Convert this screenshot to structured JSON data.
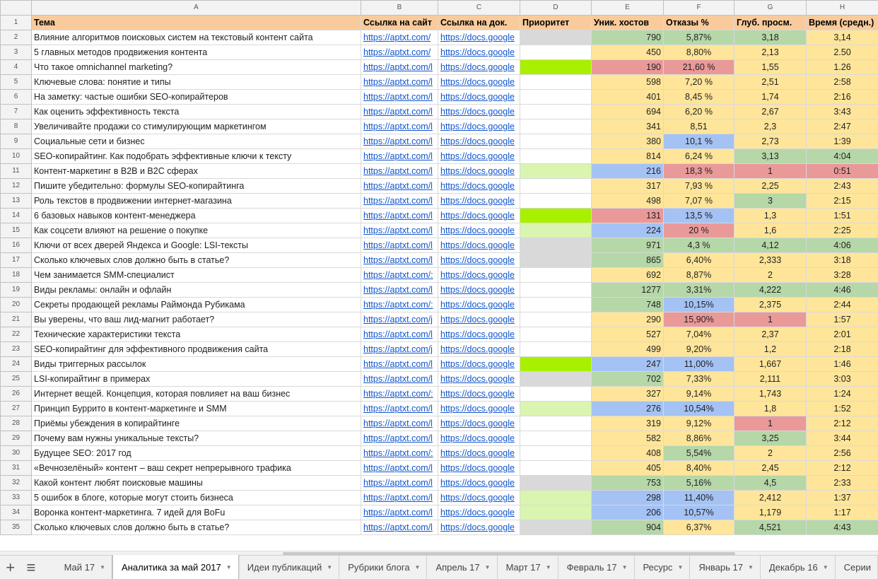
{
  "colors": {
    "header_bg": "#f9cb9c",
    "green": "#b6d7a8",
    "yellow": "#ffe599",
    "red": "#ea9999",
    "blue": "#a4c2f4",
    "grey": "#d9d9d9",
    "lime": "#a8f000",
    "lightgreen": "#d9f5b0",
    "white": "#ffffff"
  },
  "columns": [
    "A",
    "B",
    "C",
    "D",
    "E",
    "F",
    "G",
    "H"
  ],
  "headers": [
    "Тема",
    "Ссылка на сайт",
    "Ссылка на док.",
    "Приоритет",
    "Уник. хостов",
    "Отказы %",
    "Глуб. просм.",
    "Время (средн.)"
  ],
  "rows": [
    {
      "n": "2",
      "title": "Влияние алгоритмов поисковых систем на текстовый контент сайта",
      "site": "https://aptxt.com/",
      "doc": "https://docs.google",
      "pri": "grey",
      "hosts": "790",
      "hc": "green",
      "bounce": "5,87%",
      "bc": "green",
      "depth": "3,18",
      "dc": "green",
      "time": "3,14",
      "tc": "yellow"
    },
    {
      "n": "3",
      "title": "5 главных методов продвижения контента",
      "site": "https://aptxt.com/",
      "doc": "https://docs.google",
      "pri": "white",
      "hosts": "450",
      "hc": "yellow",
      "bounce": "8,80%",
      "bc": "yellow",
      "depth": "2,13",
      "dc": "yellow",
      "time": "2.50",
      "tc": "yellow"
    },
    {
      "n": "4",
      "title": "Что такое omnichannel marketing?",
      "site": "https://aptxt.com/l",
      "doc": "https://docs.google",
      "pri": "lime",
      "hosts": "190",
      "hc": "red",
      "bounce": "21,60 %",
      "bc": "red",
      "depth": "1,55",
      "dc": "yellow",
      "time": "1.26",
      "tc": "yellow"
    },
    {
      "n": "5",
      "title": "Ключевые слова: понятие и типы",
      "site": "https://aptxt.com/l",
      "doc": "https://docs.google",
      "pri": "white",
      "hosts": "598",
      "hc": "yellow",
      "bounce": "7,20 %",
      "bc": "yellow",
      "depth": "2,51",
      "dc": "yellow",
      "time": "2:58",
      "tc": "yellow"
    },
    {
      "n": "6",
      "title": "На заметку: частые ошибки SEO-копирайтеров",
      "site": "https://aptxt.com/l",
      "doc": "https://docs.google",
      "pri": "white",
      "hosts": "401",
      "hc": "yellow",
      "bounce": "8,45 %",
      "bc": "yellow",
      "depth": "1,74",
      "dc": "yellow",
      "time": "2:16",
      "tc": "yellow"
    },
    {
      "n": "7",
      "title": "Как оценить эффективность текста",
      "site": "https://aptxt.com/l",
      "doc": "https://docs.google",
      "pri": "white",
      "hosts": "694",
      "hc": "yellow",
      "bounce": "6,20 %",
      "bc": "yellow",
      "depth": "2,67",
      "dc": "yellow",
      "time": "3:43",
      "tc": "yellow"
    },
    {
      "n": "8",
      "title": "Увеличивайте продажи со стимулирующим маркетингом",
      "site": "https://aptxt.com/l",
      "doc": "https://docs.google",
      "pri": "white",
      "hosts": "341",
      "hc": "yellow",
      "bounce": "8,51",
      "bc": "yellow",
      "depth": "2,3",
      "dc": "yellow",
      "time": "2:47",
      "tc": "yellow"
    },
    {
      "n": "9",
      "title": "Социальные сети и бизнес",
      "site": "https://aptxt.com/l",
      "doc": "https://docs.google",
      "pri": "white",
      "hosts": "380",
      "hc": "yellow",
      "bounce": "10,1 %",
      "bc": "blue",
      "depth": "2,73",
      "dc": "yellow",
      "time": "1:39",
      "tc": "yellow"
    },
    {
      "n": "10",
      "title": "SEO-копирайтинг. Как подобрать эффективные ключи к тексту",
      "site": "https://aptxt.com/l",
      "doc": "https://docs.google",
      "pri": "white",
      "hosts": "814",
      "hc": "yellow",
      "bounce": "6,24 %",
      "bc": "yellow",
      "depth": "3,13",
      "dc": "green",
      "time": "4:04",
      "tc": "green"
    },
    {
      "n": "11",
      "title": "Контент-маркетинг в B2B и B2C сферах",
      "site": "https://aptxt.com/l",
      "doc": "https://docs.google",
      "pri": "lightgreen",
      "hosts": "216",
      "hc": "blue",
      "bounce": "18,3 %",
      "bc": "red",
      "depth": "1",
      "dc": "red",
      "time": "0:51",
      "tc": "red"
    },
    {
      "n": "12",
      "title": "Пишите убедительно: формулы SEO-копирайтинга",
      "site": "https://aptxt.com/l",
      "doc": "https://docs.google",
      "pri": "white",
      "hosts": "317",
      "hc": "yellow",
      "bounce": "7,93 %",
      "bc": "yellow",
      "depth": "2,25",
      "dc": "yellow",
      "time": "2:43",
      "tc": "yellow"
    },
    {
      "n": "13",
      "title": "Роль текстов в продвижении интернет-магазина",
      "site": "https://aptxt.com/l",
      "doc": "https://docs.google",
      "pri": "white",
      "hosts": "498",
      "hc": "yellow",
      "bounce": "7,07 %",
      "bc": "yellow",
      "depth": "3",
      "dc": "green",
      "time": "2:15",
      "tc": "yellow"
    },
    {
      "n": "14",
      "title": "6 базовых навыков контент-менеджера",
      "site": "https://aptxt.com/l",
      "doc": "https://docs.google",
      "pri": "lime",
      "hosts": "131",
      "hc": "red",
      "bounce": "13,5 %",
      "bc": "blue",
      "depth": "1,3",
      "dc": "yellow",
      "time": "1:51",
      "tc": "yellow"
    },
    {
      "n": "15",
      "title": "Как соцсети влияют на решение о покупке",
      "site": "https://aptxt.com/l",
      "doc": "https://docs.google",
      "pri": "lightgreen",
      "hosts": "224",
      "hc": "blue",
      "bounce": "20 %",
      "bc": "red",
      "depth": "1,6",
      "dc": "yellow",
      "time": "2:25",
      "tc": "yellow"
    },
    {
      "n": "16",
      "title": "Ключи от всех дверей Яндекса и Google: LSI-тексты",
      "site": "https://aptxt.com/l",
      "doc": "https://docs.google",
      "pri": "grey",
      "hosts": "971",
      "hc": "green",
      "bounce": "4,3 %",
      "bc": "green",
      "depth": "4,12",
      "dc": "green",
      "time": "4:06",
      "tc": "green"
    },
    {
      "n": "17",
      "title": "Сколько ключевых слов должно быть в статье?",
      "site": "https://aptxt.com/l",
      "doc": "https://docs.google",
      "pri": "grey",
      "hosts": "865",
      "hc": "green",
      "bounce": "6,40%",
      "bc": "yellow",
      "depth": "2,333",
      "dc": "yellow",
      "time": "3:18",
      "tc": "yellow"
    },
    {
      "n": "18",
      "title": "Чем занимается SMM-специалист",
      "site": "https://aptxt.com/:",
      "doc": "https://docs.google",
      "pri": "white",
      "hosts": "692",
      "hc": "yellow",
      "bounce": "8,87%",
      "bc": "yellow",
      "depth": "2",
      "dc": "yellow",
      "time": "3:28",
      "tc": "yellow"
    },
    {
      "n": "19",
      "title": "Виды рекламы: онлайн и офлайн",
      "site": "https://aptxt.com/l",
      "doc": "https://docs.google",
      "pri": "white",
      "hosts": "1277",
      "hc": "green",
      "bounce": "3,31%",
      "bc": "green",
      "depth": "4,222",
      "dc": "green",
      "time": "4:46",
      "tc": "green"
    },
    {
      "n": "20",
      "title": "Секреты продающей рекламы Раймонда Рубикама",
      "site": "https://aptxt.com/:",
      "doc": "https://docs.google",
      "pri": "white",
      "hosts": "748",
      "hc": "green",
      "bounce": "10,15%",
      "bc": "blue",
      "depth": "2,375",
      "dc": "yellow",
      "time": "2:44",
      "tc": "yellow"
    },
    {
      "n": "21",
      "title": "Вы уверены, что ваш лид-магнит работает?",
      "site": "https://aptxt.com/j",
      "doc": "https://docs.google",
      "pri": "white",
      "hosts": "290",
      "hc": "yellow",
      "bounce": "15,90%",
      "bc": "red",
      "depth": "1",
      "dc": "red",
      "time": "1:57",
      "tc": "yellow"
    },
    {
      "n": "22",
      "title": "Технические характеристики текста",
      "site": "https://aptxt.com/l",
      "doc": "https://docs.google",
      "pri": "white",
      "hosts": "527",
      "hc": "yellow",
      "bounce": "7,04%",
      "bc": "yellow",
      "depth": "2,37",
      "dc": "yellow",
      "time": "2:01",
      "tc": "yellow"
    },
    {
      "n": "23",
      "title": "SEO-копирайтинг для эффективного продвижения сайта",
      "site": "https://aptxt.com/j",
      "doc": "https://docs.google",
      "pri": "white",
      "hosts": "499",
      "hc": "yellow",
      "bounce": "9,20%",
      "bc": "yellow",
      "depth": "1,2",
      "dc": "yellow",
      "time": "2:18",
      "tc": "yellow"
    },
    {
      "n": "24",
      "title": "Виды триггерных рассылок",
      "site": "https://aptxt.com/l",
      "doc": "https://docs.google",
      "pri": "lime",
      "hosts": "247",
      "hc": "blue",
      "bounce": "11,00%",
      "bc": "blue",
      "depth": "1,667",
      "dc": "yellow",
      "time": "1:46",
      "tc": "yellow"
    },
    {
      "n": "25",
      "title": "LSI-копирайтинг в примерах",
      "site": "https://aptxt.com/l",
      "doc": "https://docs.google",
      "pri": "grey",
      "hosts": "702",
      "hc": "green",
      "bounce": "7,33%",
      "bc": "yellow",
      "depth": "2,111",
      "dc": "yellow",
      "time": "3:03",
      "tc": "yellow"
    },
    {
      "n": "26",
      "title": "Интернет вещей. Концепция, которая повлияет на ваш бизнес",
      "site": "https://aptxt.com/:",
      "doc": "https://docs.google",
      "pri": "white",
      "hosts": "327",
      "hc": "yellow",
      "bounce": "9,14%",
      "bc": "yellow",
      "depth": "1,743",
      "dc": "yellow",
      "time": "1:24",
      "tc": "yellow"
    },
    {
      "n": "27",
      "title": "Принцип Буррито в контент-маркетинге и SMM",
      "site": "https://aptxt.com/l",
      "doc": "https://docs.google",
      "pri": "lightgreen",
      "hosts": "276",
      "hc": "blue",
      "bounce": "10,54%",
      "bc": "blue",
      "depth": "1,8",
      "dc": "yellow",
      "time": "1:52",
      "tc": "yellow"
    },
    {
      "n": "28",
      "title": "Приёмы убеждения в копирайтинге",
      "site": "https://aptxt.com/l",
      "doc": "https://docs.google",
      "pri": "white",
      "hosts": "319",
      "hc": "yellow",
      "bounce": "9,12%",
      "bc": "yellow",
      "depth": "1",
      "dc": "red",
      "time": "2:12",
      "tc": "yellow"
    },
    {
      "n": "29",
      "title": "Почему вам нужны уникальные тексты?",
      "site": "https://aptxt.com/l",
      "doc": "https://docs.google",
      "pri": "white",
      "hosts": "582",
      "hc": "yellow",
      "bounce": "8,86%",
      "bc": "yellow",
      "depth": "3,25",
      "dc": "green",
      "time": "3:44",
      "tc": "yellow"
    },
    {
      "n": "30",
      "title": "Будущее SEO: 2017 год",
      "site": "https://aptxt.com/:",
      "doc": "https://docs.google",
      "pri": "white",
      "hosts": "408",
      "hc": "yellow",
      "bounce": "5,54%",
      "bc": "green",
      "depth": "2",
      "dc": "yellow",
      "time": "2:56",
      "tc": "yellow"
    },
    {
      "n": "31",
      "title": "«Вечнозелёный» контент – ваш секрет непрерывного трафика",
      "site": "https://aptxt.com/l",
      "doc": "https://docs.google",
      "pri": "white",
      "hosts": "405",
      "hc": "yellow",
      "bounce": "8,40%",
      "bc": "yellow",
      "depth": "2,45",
      "dc": "yellow",
      "time": "2:12",
      "tc": "yellow"
    },
    {
      "n": "32",
      "title": "Какой контент любят поисковые машины",
      "site": "https://aptxt.com/l",
      "doc": "https://docs.google",
      "pri": "grey",
      "hosts": "753",
      "hc": "green",
      "bounce": "5,16%",
      "bc": "green",
      "depth": "4,5",
      "dc": "green",
      "time": "2:33",
      "tc": "yellow"
    },
    {
      "n": "33",
      "title": "5 ошибок в блоге, которые могут стоить бизнеса",
      "site": "https://aptxt.com/l",
      "doc": "https://docs.google",
      "pri": "lightgreen",
      "hosts": "298",
      "hc": "blue",
      "bounce": "11,40%",
      "bc": "blue",
      "depth": "2,412",
      "dc": "yellow",
      "time": "1:37",
      "tc": "yellow"
    },
    {
      "n": "34",
      "title": "Воронка контент-маркетинга. 7 идей для BoFu",
      "site": "https://aptxt.com/l",
      "doc": "https://docs.google",
      "pri": "lightgreen",
      "hosts": "206",
      "hc": "blue",
      "bounce": "10,57%",
      "bc": "blue",
      "depth": "1,179",
      "dc": "yellow",
      "time": "1:17",
      "tc": "yellow"
    },
    {
      "n": "35",
      "title": "Сколько ключевых слов должно быть в статье?",
      "site": "https://aptxt.com/l",
      "doc": "https://docs.google",
      "pri": "grey",
      "hosts": "904",
      "hc": "green",
      "bounce": "6,37%",
      "bc": "yellow",
      "depth": "4,521",
      "dc": "green",
      "time": "4:43",
      "tc": "green"
    }
  ],
  "tabs": [
    {
      "label": "Май 17",
      "active": false
    },
    {
      "label": "Аналитика за май 2017",
      "active": true
    },
    {
      "label": "Идеи публикаций",
      "active": false
    },
    {
      "label": "Рубрики блога",
      "active": false
    },
    {
      "label": "Апрель 17",
      "active": false
    },
    {
      "label": "Март 17",
      "active": false
    },
    {
      "label": "Февраль 17",
      "active": false
    },
    {
      "label": "Ресурс",
      "active": false
    },
    {
      "label": "Январь 17",
      "active": false
    },
    {
      "label": "Декабрь 16",
      "active": false
    },
    {
      "label": "Серии",
      "active": false
    }
  ],
  "tabbar": {
    "add_icon": "plus-icon",
    "list_icon": "list-icon",
    "add_label": "+",
    "list_label": "≡"
  }
}
